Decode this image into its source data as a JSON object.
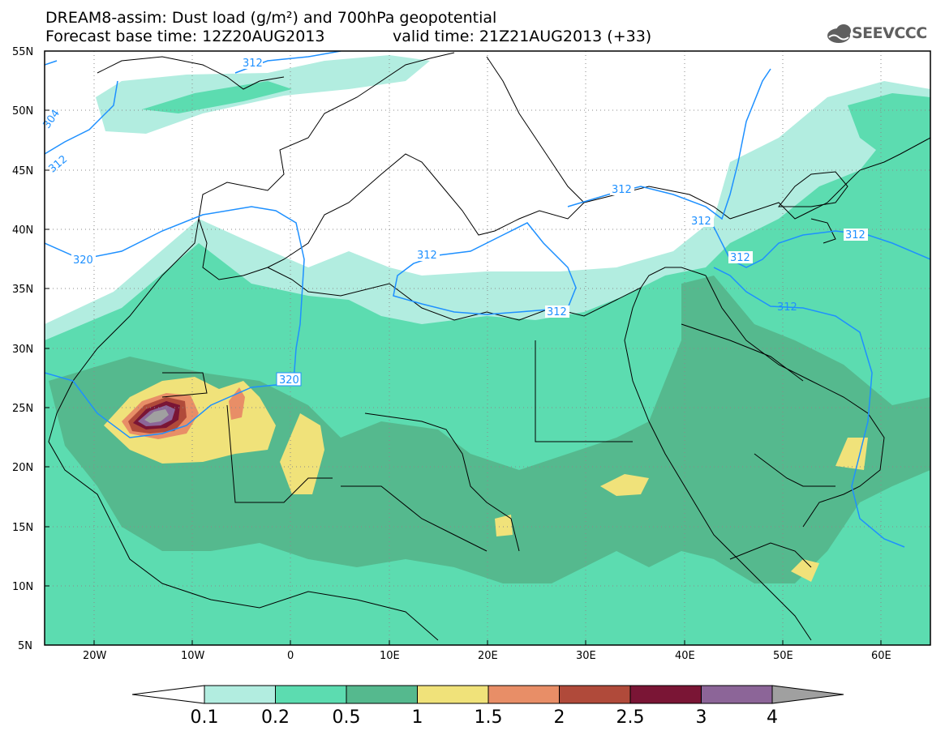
{
  "header": {
    "line1": "DREAM8-assim: Dust load (g/m²) and 700hPa geopotential",
    "line2_left": "Forecast base time: 12Z20AUG2013",
    "line2_right": "valid time: 21Z21AUG2013 (+33)"
  },
  "logo": {
    "text": "SEEVCCC",
    "icon": "cloud-icon"
  },
  "axes": {
    "lat_labels": [
      "55N",
      "50N",
      "45N",
      "40N",
      "35N",
      "30N",
      "25N",
      "20N",
      "15N",
      "10N",
      "5N"
    ],
    "lon_labels": [
      "20W",
      "10W",
      "0",
      "10E",
      "20E",
      "30E",
      "40E",
      "50E",
      "60E"
    ]
  },
  "colorbar": {
    "labels": [
      "0.1",
      "0.2",
      "0.5",
      "1",
      "1.5",
      "2",
      "2.5",
      "3",
      "4"
    ],
    "colors": [
      "#b2ede0",
      "#5cdcb0",
      "#55b98e",
      "#f0e27a",
      "#e88e67",
      "#b04a3a",
      "#7a1535",
      "#8c6598",
      "#a0a0a0"
    ],
    "under_color": "#ffffff"
  },
  "contour_labels": {
    "c312a": "312",
    "c312b": "312",
    "c312c": "312",
    "c312d": "312",
    "c312e": "312",
    "c312f": "312",
    "c312g": "312",
    "c320a": "320",
    "c320b": "320",
    "c304": "304"
  },
  "colors": {
    "contour": "#1e90ff",
    "border": "#000000",
    "grid": "#8a8a8a"
  }
}
